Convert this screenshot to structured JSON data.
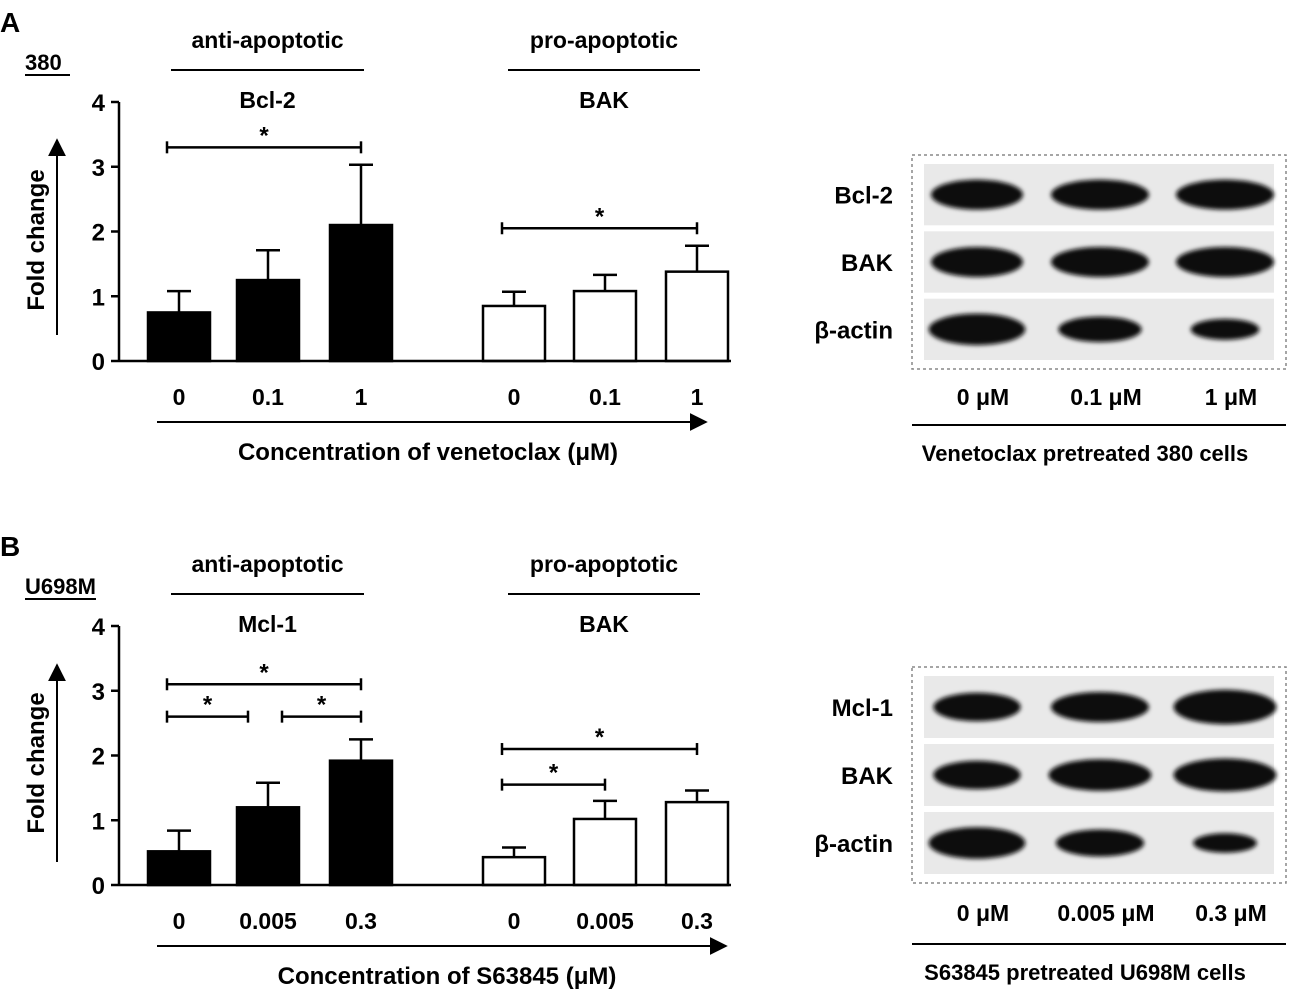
{
  "panels": [
    {
      "letter": "A",
      "cell_line": "380",
      "chart_data": {
        "type": "bar",
        "ylabel": "Fold change",
        "xlabel": "Concentration of venetoclax (μM)",
        "ylim": [
          0,
          4
        ],
        "yticks": [
          "0",
          "1",
          "2",
          "3",
          "4"
        ],
        "groups": [
          {
            "category": "anti-apoptotic",
            "gene": "Bcl-2",
            "fill": "#000000",
            "labels": [
              "0",
              "0.1",
              "1"
            ],
            "values": [
              0.75,
              1.25,
              2.1
            ],
            "errors": [
              0.33,
              0.46,
              0.93
            ],
            "significance": [
              {
                "from": 0,
                "to": 2,
                "label": "*",
                "y": 3.3
              }
            ]
          },
          {
            "category": "pro-apoptotic",
            "gene": "BAK",
            "fill": "#ffffff",
            "labels": [
              "0",
              "0.1",
              "1"
            ],
            "values": [
              0.85,
              1.08,
              1.38
            ],
            "errors": [
              0.22,
              0.25,
              0.4
            ],
            "significance": [
              {
                "from": 0,
                "to": 2,
                "label": "*",
                "y": 2.05
              }
            ]
          }
        ]
      },
      "blot": {
        "rows": [
          "Bcl-2",
          "BAK",
          "β-actin"
        ],
        "lanes": [
          "0 μM",
          "0.1 μM",
          "1 μM"
        ],
        "caption": "Venetoclax pretreated 380 cells"
      }
    },
    {
      "letter": "B",
      "cell_line": "U698M",
      "chart_data": {
        "type": "bar",
        "ylabel": "Fold change",
        "xlabel": "Concentration of S63845 (μM)",
        "ylim": [
          0,
          4
        ],
        "yticks": [
          "0",
          "1",
          "2",
          "3",
          "4"
        ],
        "groups": [
          {
            "category": "anti-apoptotic",
            "gene": "Mcl-1",
            "fill": "#000000",
            "labels": [
              "0",
              "0.005",
              "0.3"
            ],
            "values": [
              0.52,
              1.2,
              1.92
            ],
            "errors": [
              0.32,
              0.38,
              0.33
            ],
            "significance": [
              {
                "from": 0,
                "to": 2,
                "label": "*",
                "y": 3.1
              },
              {
                "from": 0,
                "to": 1,
                "label": "*",
                "y": 2.6
              },
              {
                "from": 1,
                "to": 2,
                "label": "*",
                "y": 2.6
              }
            ]
          },
          {
            "category": "pro-apoptotic",
            "gene": "BAK",
            "fill": "#ffffff",
            "labels": [
              "0",
              "0.005",
              "0.3"
            ],
            "values": [
              0.43,
              1.02,
              1.28
            ],
            "errors": [
              0.15,
              0.28,
              0.18
            ],
            "significance": [
              {
                "from": 0,
                "to": 2,
                "label": "*",
                "y": 2.1
              },
              {
                "from": 0,
                "to": 1,
                "label": "*",
                "y": 1.55
              }
            ]
          }
        ]
      },
      "blot": {
        "rows": [
          "Mcl-1",
          "BAK",
          "β-actin"
        ],
        "lanes": [
          "0 μM",
          "0.005 μM",
          "0.3 μM"
        ],
        "caption": "S63845 pretreated U698M cells"
      }
    }
  ]
}
